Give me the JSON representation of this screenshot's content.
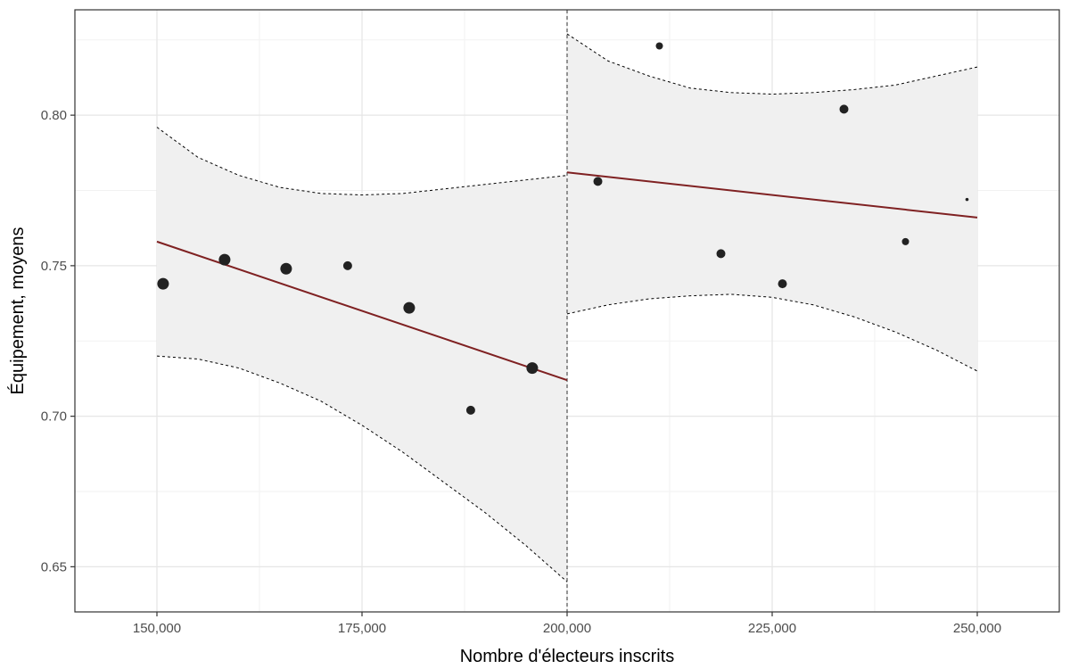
{
  "chart_data": {
    "type": "scatter",
    "xlabel": "Nombre d'électeurs inscrits",
    "ylabel": "Équipement, moyens",
    "xlim": [
      140000,
      260000
    ],
    "ylim": [
      0.635,
      0.835
    ],
    "x_ticks": [
      150000,
      175000,
      200000,
      225000,
      250000
    ],
    "x_tick_labels": [
      "150,000",
      "175,000",
      "200,000",
      "225,000",
      "250,000"
    ],
    "y_ticks": [
      0.65,
      0.7,
      0.75,
      0.8
    ],
    "y_tick_labels": [
      "0.65",
      "0.70",
      "0.75",
      "0.80"
    ],
    "grid": true,
    "threshold_x": 200000,
    "points": [
      {
        "x": 150750,
        "y": 0.744,
        "size": "large"
      },
      {
        "x": 158250,
        "y": 0.752,
        "size": "large"
      },
      {
        "x": 165750,
        "y": 0.749,
        "size": "large"
      },
      {
        "x": 173250,
        "y": 0.75,
        "size": "medium"
      },
      {
        "x": 180750,
        "y": 0.736,
        "size": "large"
      },
      {
        "x": 188250,
        "y": 0.702,
        "size": "medium"
      },
      {
        "x": 195750,
        "y": 0.716,
        "size": "large"
      },
      {
        "x": 203750,
        "y": 0.778,
        "size": "medium"
      },
      {
        "x": 211250,
        "y": 0.823,
        "size": "small"
      },
      {
        "x": 218750,
        "y": 0.754,
        "size": "medium"
      },
      {
        "x": 226250,
        "y": 0.744,
        "size": "medium"
      },
      {
        "x": 233750,
        "y": 0.802,
        "size": "medium"
      },
      {
        "x": 241250,
        "y": 0.758,
        "size": "small"
      },
      {
        "x": 248750,
        "y": 0.772,
        "size": "tiny"
      }
    ],
    "fit_segments": [
      {
        "x": [
          150000,
          200000
        ],
        "y": [
          0.758,
          0.712
        ]
      },
      {
        "x": [
          200000,
          250000
        ],
        "y": [
          0.781,
          0.766
        ]
      }
    ],
    "confidence_bands": [
      {
        "x": [
          150000,
          155000,
          160000,
          165000,
          170000,
          175000,
          180000,
          185000,
          190000,
          195000,
          200000
        ],
        "upper": [
          0.796,
          0.786,
          0.78,
          0.776,
          0.774,
          0.7735,
          0.774,
          0.7755,
          0.777,
          0.7785,
          0.78
        ],
        "lower": [
          0.72,
          0.719,
          0.716,
          0.711,
          0.705,
          0.697,
          0.688,
          0.678,
          0.668,
          0.657,
          0.645
        ]
      },
      {
        "x": [
          200000,
          205000,
          210000,
          215000,
          220000,
          225000,
          230000,
          235000,
          240000,
          245000,
          250000
        ],
        "upper": [
          0.827,
          0.818,
          0.813,
          0.809,
          0.8075,
          0.807,
          0.8075,
          0.8085,
          0.81,
          0.813,
          0.816
        ],
        "lower": [
          0.734,
          0.737,
          0.739,
          0.74,
          0.7405,
          0.7395,
          0.737,
          0.733,
          0.728,
          0.722,
          0.715
        ]
      }
    ],
    "colors": {
      "points": "#222222",
      "fit_line": "#7f2122",
      "band_fill": "#f0f0f0",
      "band_border": "#000000",
      "grid_major": "#e6e6e6",
      "grid_minor": "#f2f2f2",
      "panel_border": "#333333"
    }
  }
}
